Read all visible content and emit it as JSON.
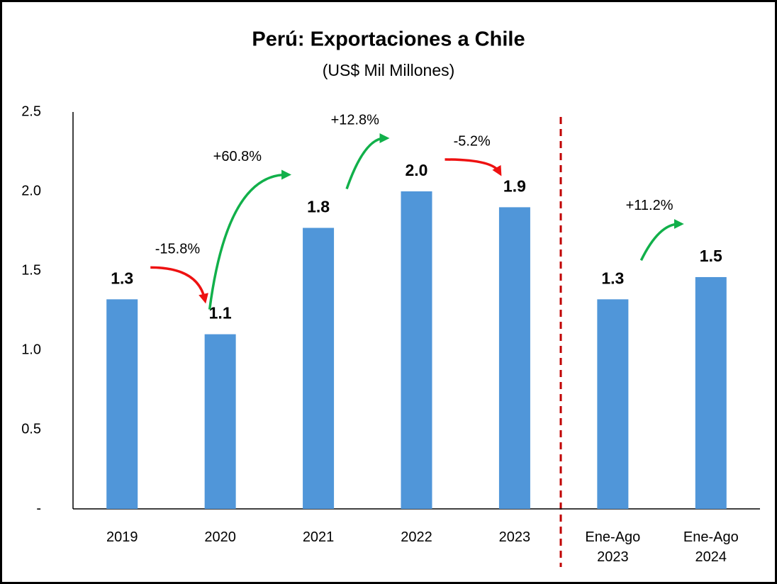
{
  "chart_data": {
    "type": "bar",
    "title": "Perú: Exportaciones a Chile",
    "subtitle": "(US$ Mil Millones)",
    "categories": [
      "2019",
      "2020",
      "2021",
      "2022",
      "2023",
      "Ene-Ago 2023",
      "Ene-Ago 2024"
    ],
    "values": [
      1.32,
      1.1,
      1.77,
      2.0,
      1.9,
      1.32,
      1.46
    ],
    "value_labels": [
      "1.3",
      "1.1",
      "1.8",
      "2.0",
      "1.9",
      "1.3",
      "1.5"
    ],
    "color": "#5096d9",
    "ylim": [
      0,
      2.5
    ],
    "yticks": [
      {
        "value": 0,
        "label": "-"
      },
      0.5,
      {
        "value": 1,
        "label": "1.0"
      },
      1.5,
      {
        "value": 2,
        "label": "2.0"
      },
      2.5
    ],
    "annotations": [
      {
        "text": "-15.8%",
        "from": 0,
        "to": 1,
        "color": "#ee1111"
      },
      {
        "text": "+60.8%",
        "from": 1,
        "to": 2,
        "color": "#11b04a"
      },
      {
        "text": "+12.8%",
        "from": 2,
        "to": 3,
        "color": "#11b04a"
      },
      {
        "text": "-5.2%",
        "from": 3,
        "to": 4,
        "color": "#ee1111"
      },
      {
        "text": "+11.2%",
        "from": 5,
        "to": 6,
        "color": "#11b04a"
      }
    ]
  }
}
